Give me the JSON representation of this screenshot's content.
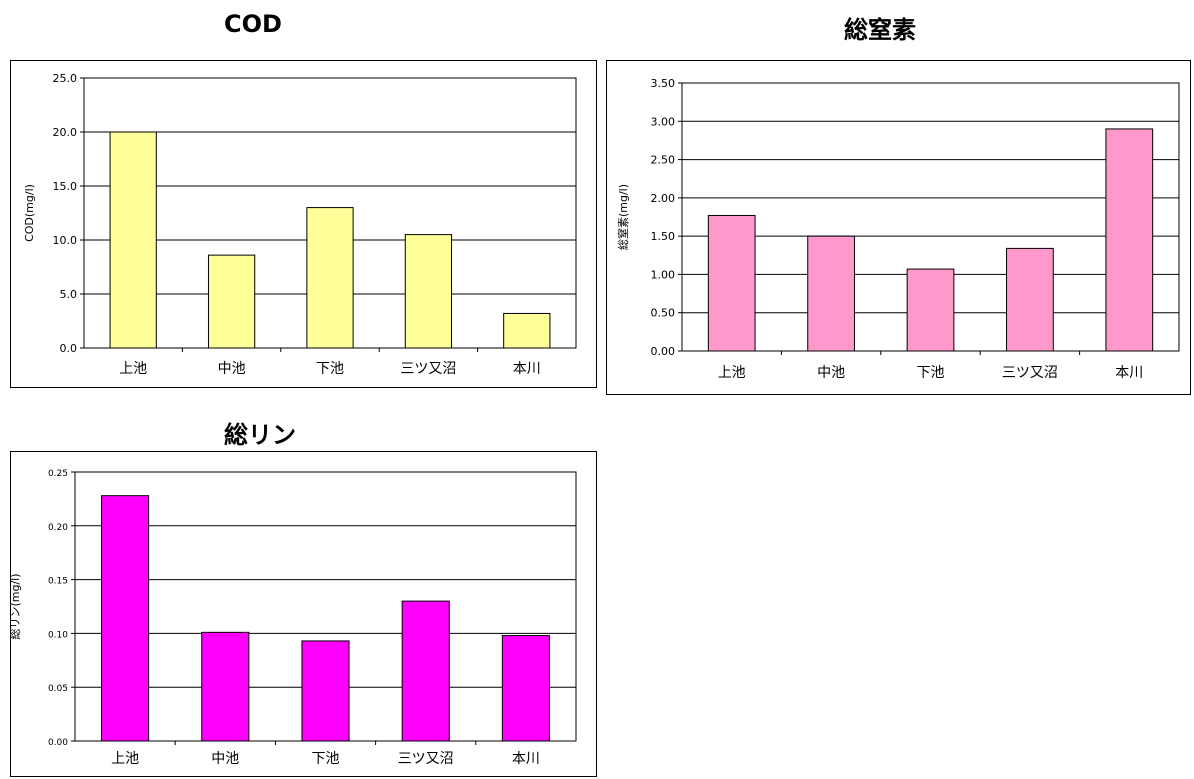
{
  "chart_data": [
    {
      "type": "bar",
      "title": "COD",
      "ylabel": "COD(mg/l)",
      "xlabel": "",
      "categories": [
        "上池",
        "中池",
        "下池",
        "三ツ又沼",
        "本川"
      ],
      "values": [
        20.0,
        8.6,
        13.0,
        10.5,
        3.2
      ],
      "ylim": [
        0,
        25
      ],
      "yticks": [
        "0.0",
        "5.0",
        "10.0",
        "15.0",
        "20.0",
        "25.0"
      ],
      "grid": true,
      "bar_color": "#ffff99"
    },
    {
      "type": "bar",
      "title": "総窒素",
      "ylabel": "総窒素(mg/l)",
      "xlabel": "",
      "categories": [
        "上池",
        "中池",
        "下池",
        "三ツ又沼",
        "本川"
      ],
      "values": [
        1.77,
        1.5,
        1.07,
        1.34,
        2.9
      ],
      "ylim": [
        0,
        3.5
      ],
      "yticks": [
        "0.00",
        "0.50",
        "1.00",
        "1.50",
        "2.00",
        "2.50",
        "3.00",
        "3.50"
      ],
      "grid": true,
      "bar_color": "#ff99cc"
    },
    {
      "type": "bar",
      "title": "総リン",
      "ylabel": "総リン(mg/l)",
      "xlabel": "",
      "categories": [
        "上池",
        "中池",
        "下池",
        "三ツ又沼",
        "本川"
      ],
      "values": [
        0.228,
        0.101,
        0.093,
        0.13,
        0.098
      ],
      "ylim": [
        0,
        0.25
      ],
      "yticks": [
        "0.00",
        "0.05",
        "0.10",
        "0.15",
        "0.20",
        "0.25"
      ],
      "grid": true,
      "bar_color": "#ff00ff"
    }
  ]
}
